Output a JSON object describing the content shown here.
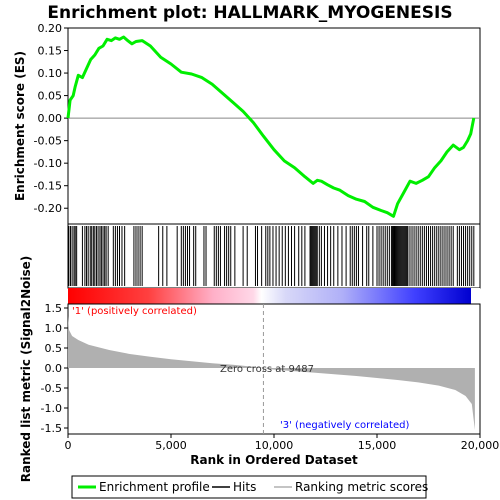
{
  "chart_data": {
    "type": "line",
    "title": "Enrichment plot: HALLMARK_MYOGENESIS",
    "xlabel": "Rank in Ordered Dataset",
    "xlim": [
      0,
      20000
    ],
    "x_ticks": [
      {
        "value": 0,
        "label": "0"
      },
      {
        "value": 5000,
        "label": "5,000"
      },
      {
        "value": 10000,
        "label": "10,000"
      },
      {
        "value": 15000,
        "label": "15,000"
      },
      {
        "value": 20000,
        "label": "20,000"
      }
    ],
    "top_panel": {
      "ylabel": "Enrichment score (ES)",
      "ylim": [
        -0.235,
        0.2
      ],
      "y_ticks": [
        {
          "value": 0.2,
          "label": "0.20"
        },
        {
          "value": 0.15,
          "label": "0.15"
        },
        {
          "value": 0.1,
          "label": "0.10"
        },
        {
          "value": 0.05,
          "label": "0.05"
        },
        {
          "value": 0.0,
          "label": "0.00"
        },
        {
          "value": -0.05,
          "label": "-0.05"
        },
        {
          "value": -0.1,
          "label": "-0.10"
        },
        {
          "value": -0.15,
          "label": "-0.15"
        },
        {
          "value": -0.2,
          "label": "-0.20"
        }
      ],
      "series": [
        {
          "name": "Enrichment profile",
          "color": "#00ee00",
          "points": [
            [
              0,
              0.0
            ],
            [
              100,
              0.04
            ],
            [
              250,
              0.05
            ],
            [
              350,
              0.07
            ],
            [
              500,
              0.095
            ],
            [
              700,
              0.09
            ],
            [
              900,
              0.11
            ],
            [
              1100,
              0.13
            ],
            [
              1300,
              0.14
            ],
            [
              1500,
              0.155
            ],
            [
              1700,
              0.16
            ],
            [
              1900,
              0.175
            ],
            [
              2100,
              0.172
            ],
            [
              2300,
              0.178
            ],
            [
              2500,
              0.175
            ],
            [
              2700,
              0.18
            ],
            [
              2900,
              0.172
            ],
            [
              3100,
              0.165
            ],
            [
              3300,
              0.17
            ],
            [
              3600,
              0.172
            ],
            [
              4000,
              0.16
            ],
            [
              4500,
              0.135
            ],
            [
              5000,
              0.12
            ],
            [
              5500,
              0.102
            ],
            [
              6000,
              0.098
            ],
            [
              6500,
              0.09
            ],
            [
              7000,
              0.075
            ],
            [
              7500,
              0.055
            ],
            [
              8000,
              0.035
            ],
            [
              8500,
              0.015
            ],
            [
              9000,
              -0.01
            ],
            [
              9487,
              -0.04
            ],
            [
              10000,
              -0.07
            ],
            [
              10500,
              -0.095
            ],
            [
              11000,
              -0.11
            ],
            [
              11500,
              -0.13
            ],
            [
              11900,
              -0.145
            ],
            [
              12100,
              -0.138
            ],
            [
              12300,
              -0.14
            ],
            [
              12600,
              -0.148
            ],
            [
              12900,
              -0.155
            ],
            [
              13200,
              -0.16
            ],
            [
              13600,
              -0.172
            ],
            [
              14000,
              -0.18
            ],
            [
              14400,
              -0.185
            ],
            [
              14800,
              -0.198
            ],
            [
              15200,
              -0.205
            ],
            [
              15500,
              -0.21
            ],
            [
              15800,
              -0.218
            ],
            [
              16000,
              -0.19
            ],
            [
              16300,
              -0.165
            ],
            [
              16600,
              -0.14
            ],
            [
              16900,
              -0.145
            ],
            [
              17200,
              -0.138
            ],
            [
              17500,
              -0.13
            ],
            [
              17800,
              -0.11
            ],
            [
              18100,
              -0.095
            ],
            [
              18400,
              -0.075
            ],
            [
              18700,
              -0.06
            ],
            [
              19000,
              -0.07
            ],
            [
              19200,
              -0.065
            ],
            [
              19400,
              -0.05
            ],
            [
              19550,
              -0.035
            ],
            [
              19700,
              0.0
            ]
          ]
        }
      ]
    },
    "bottom_panel": {
      "ylabel": "Ranked list metric (Signal2Noise)",
      "ylim": [
        -1.65,
        1.6
      ],
      "y_ticks": [
        {
          "value": 1.5,
          "label": "1.5"
        },
        {
          "value": 1.0,
          "label": "1.0"
        },
        {
          "value": 0.5,
          "label": "0.5"
        },
        {
          "value": 0.0,
          "label": "0.0"
        },
        {
          "value": -0.5,
          "label": "-0.5"
        },
        {
          "value": -1.0,
          "label": "-1.0"
        },
        {
          "value": -1.5,
          "label": "-1.5"
        }
      ],
      "series": [
        {
          "name": "Ranking metric scores",
          "color": "#b0b0b0",
          "points": [
            [
              0,
              1.3
            ],
            [
              50,
              0.95
            ],
            [
              200,
              0.8
            ],
            [
              500,
              0.7
            ],
            [
              1000,
              0.58
            ],
            [
              2000,
              0.45
            ],
            [
              3000,
              0.35
            ],
            [
              4000,
              0.28
            ],
            [
              5000,
              0.22
            ],
            [
              6000,
              0.17
            ],
            [
              7000,
              0.12
            ],
            [
              8000,
              0.08
            ],
            [
              9000,
              0.03
            ],
            [
              9487,
              0.0
            ],
            [
              10000,
              -0.04
            ],
            [
              11000,
              -0.08
            ],
            [
              12000,
              -0.12
            ],
            [
              13000,
              -0.16
            ],
            [
              14000,
              -0.2
            ],
            [
              15000,
              -0.25
            ],
            [
              16000,
              -0.3
            ],
            [
              17000,
              -0.36
            ],
            [
              18000,
              -0.44
            ],
            [
              18800,
              -0.55
            ],
            [
              19300,
              -0.7
            ],
            [
              19600,
              -0.9
            ],
            [
              19750,
              -1.55
            ]
          ]
        }
      ],
      "annotations": {
        "positive": "'1' (positively correlated)",
        "zero_cross": "Zero cross at 9487",
        "negative": "'3' (negatively correlated)"
      },
      "zero_cross_rank": 9487,
      "positive_color": "#ff0000",
      "negative_color": "#0000ff"
    },
    "hits_panel": {
      "name": "Hits",
      "color": "#000000",
      "ranks": [
        40,
        120,
        200,
        290,
        350,
        420,
        700,
        820,
        900,
        980,
        1080,
        1150,
        1230,
        1300,
        1380,
        1460,
        1550,
        1620,
        1700,
        1780,
        1850,
        1950,
        2200,
        2300,
        2400,
        2500,
        2620,
        2750,
        3200,
        3300,
        3400,
        3500,
        3600,
        4400,
        4600,
        4800,
        5300,
        5500,
        5600,
        5700,
        5800,
        5900,
        6100,
        6200,
        6600,
        6700,
        7100,
        7200,
        7300,
        7400,
        7600,
        7700,
        7800,
        7900,
        8100,
        8500,
        8700,
        9100,
        9200,
        9400,
        9600,
        9700,
        9800,
        9950,
        10100,
        10250,
        10400,
        10550,
        10700,
        10850,
        11000,
        11200,
        11350,
        11500,
        11750,
        11800,
        11850,
        11900,
        11950,
        12000,
        12050,
        12100,
        12200,
        12300,
        12450,
        12600,
        12750,
        12900,
        13100,
        13300,
        13500,
        13700,
        13800,
        13900,
        14000,
        14100,
        14300,
        14500,
        14600,
        14800,
        15000,
        15100,
        15200,
        15300,
        15400,
        15500,
        15600,
        15700,
        15750,
        15800,
        15850,
        15900,
        15950,
        16000,
        16050,
        16100,
        16150,
        16200,
        16250,
        16300,
        16350,
        16400,
        16450,
        16500,
        16600,
        16700,
        16800,
        16900,
        17000,
        17100,
        17200,
        17300,
        17400,
        17500,
        17600,
        17700,
        17800,
        17900,
        18000,
        18100,
        18200,
        18300,
        18400,
        18500,
        18600,
        18700,
        18900,
        19000,
        19100,
        19200,
        19300,
        19400,
        19500,
        19600,
        19700
      ]
    },
    "legend": {
      "placement": "bottom",
      "entries": [
        {
          "label": "Enrichment profile",
          "color": "#00ee00"
        },
        {
          "label": "Hits",
          "color": "#000000"
        },
        {
          "label": "Ranking metric scores",
          "color": "#b0b0b0"
        }
      ]
    }
  }
}
